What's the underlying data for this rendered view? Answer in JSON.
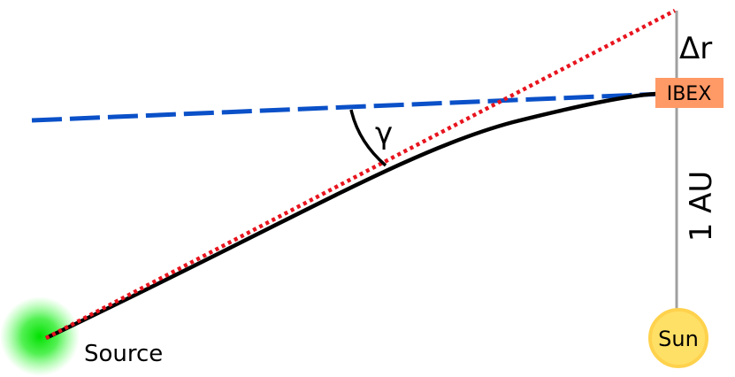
{
  "labels": {
    "source": "Source",
    "ibex": "IBEX",
    "sun": "Sun",
    "distance": "1 AU",
    "delta_r": "Δr",
    "angle": "γ"
  },
  "colors": {
    "background": "#ffffff",
    "dashed_line": "#0a50c8",
    "dotted_line": "#e8141e",
    "trajectory": "#000000",
    "axis_line": "#a0a0a0",
    "ibex_box": "#ff9966",
    "sun_fill": "#ffe066",
    "sun_outline": "#ffd24d",
    "source_glow": "#22dd22"
  }
}
